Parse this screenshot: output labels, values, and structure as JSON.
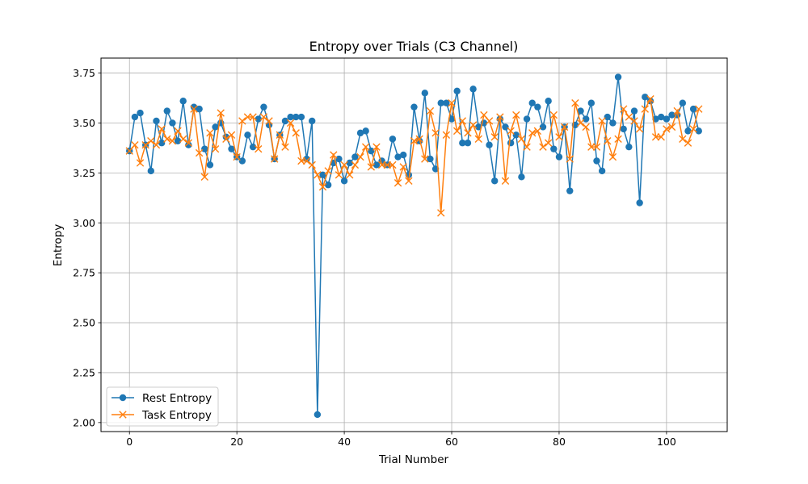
{
  "chart_data": {
    "type": "line",
    "title": "Entropy over Trials (C3 Channel)",
    "xlabel": "Trial Number",
    "ylabel": "Entropy",
    "xlim": [
      -5.3,
      111.3
    ],
    "ylim": [
      1.955,
      3.825
    ],
    "xticks": [
      0,
      20,
      40,
      60,
      80,
      100
    ],
    "yticks": [
      2.0,
      2.25,
      2.5,
      2.75,
      3.0,
      3.25,
      3.5,
      3.75
    ],
    "grid": true,
    "legend": "lower-left",
    "series": [
      {
        "name": "Rest Entropy",
        "color": "#1f77b4",
        "marker": "circle",
        "values": [
          3.36,
          3.53,
          3.55,
          3.39,
          3.26,
          3.51,
          3.4,
          3.56,
          3.5,
          3.41,
          3.61,
          3.39,
          3.58,
          3.57,
          3.37,
          3.29,
          3.48,
          3.5,
          3.43,
          3.37,
          3.33,
          3.31,
          3.44,
          3.38,
          3.52,
          3.58,
          3.49,
          3.32,
          3.44,
          3.51,
          3.53,
          3.53,
          3.53,
          3.32,
          3.51,
          2.04,
          3.24,
          3.19,
          3.3,
          3.32,
          3.21,
          3.3,
          3.33,
          3.45,
          3.46,
          3.36,
          3.29,
          3.31,
          3.29,
          3.42,
          3.33,
          3.34,
          3.24,
          3.58,
          3.41,
          3.65,
          3.32,
          3.27,
          3.6,
          3.6,
          3.52,
          3.66,
          3.4,
          3.4,
          3.67,
          3.48,
          3.5,
          3.39,
          3.21,
          3.52,
          3.48,
          3.4,
          3.44,
          3.23,
          3.52,
          3.6,
          3.58,
          3.48,
          3.61,
          3.37,
          3.33,
          3.48,
          3.16,
          3.49,
          3.56,
          3.52,
          3.6,
          3.31,
          3.26,
          3.53,
          3.5,
          3.73,
          3.47,
          3.38,
          3.56,
          3.1,
          3.63,
          3.61,
          3.52,
          3.53,
          3.52,
          3.54,
          3.54,
          3.6,
          3.46,
          3.57,
          3.46
        ]
      },
      {
        "name": "Task Entropy",
        "color": "#ff7f0e",
        "marker": "x",
        "values": [
          3.36,
          3.39,
          3.3,
          3.39,
          3.41,
          3.39,
          3.47,
          3.42,
          3.41,
          3.46,
          3.42,
          3.4,
          3.57,
          3.35,
          3.23,
          3.45,
          3.37,
          3.55,
          3.42,
          3.44,
          3.33,
          3.51,
          3.53,
          3.53,
          3.37,
          3.53,
          3.51,
          3.32,
          3.44,
          3.38,
          3.5,
          3.45,
          3.31,
          3.31,
          3.29,
          3.24,
          3.18,
          3.26,
          3.34,
          3.24,
          3.29,
          3.24,
          3.29,
          3.33,
          3.38,
          3.28,
          3.38,
          3.29,
          3.29,
          3.29,
          3.2,
          3.28,
          3.21,
          3.41,
          3.42,
          3.32,
          3.56,
          3.45,
          3.05,
          3.44,
          3.6,
          3.46,
          3.51,
          3.45,
          3.49,
          3.42,
          3.54,
          3.51,
          3.43,
          3.53,
          3.21,
          3.46,
          3.54,
          3.42,
          3.38,
          3.45,
          3.46,
          3.38,
          3.4,
          3.54,
          3.43,
          3.48,
          3.32,
          3.6,
          3.5,
          3.48,
          3.38,
          3.38,
          3.51,
          3.41,
          3.33,
          3.42,
          3.57,
          3.53,
          3.51,
          3.47,
          3.57,
          3.62,
          3.43,
          3.43,
          3.47,
          3.48,
          3.56,
          3.42,
          3.4,
          3.47,
          3.57
        ]
      }
    ]
  }
}
